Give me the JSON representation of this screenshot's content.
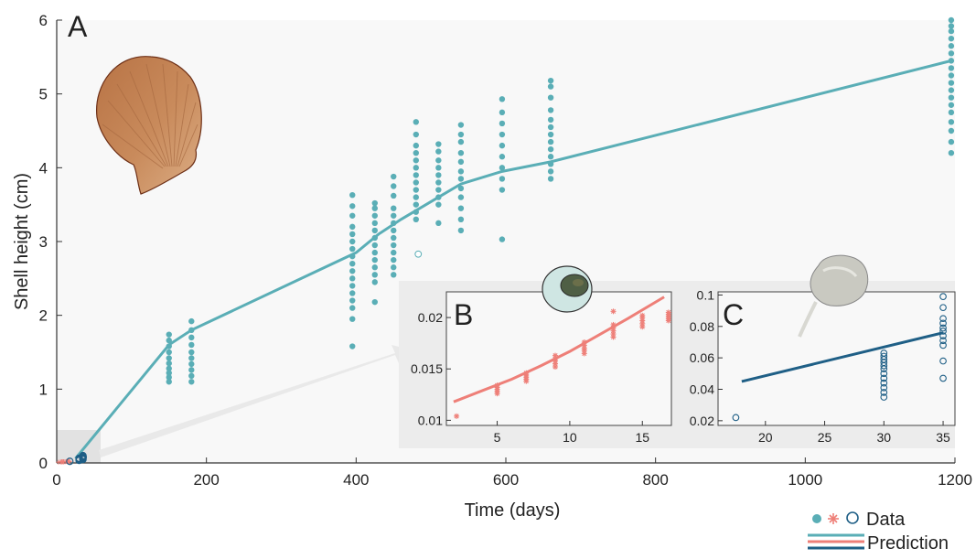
{
  "colors": {
    "growth_teal": "#5aaeb6",
    "larva_red": "#ee7f78",
    "juvenile_blue": "#1f5f86",
    "inset_bg": "#efefef",
    "plot_bg": "#f8f8f8"
  },
  "icons": [
    "scallop-shell-icon",
    "larva-icon",
    "juvenile-scallop-icon"
  ],
  "legend": {
    "data_label": "Data",
    "prediction_label": "Prediction"
  },
  "chart_data": [
    {
      "panel": "A",
      "type": "scatter",
      "xlabel": "Time (days)",
      "ylabel": "Shell height (cm)",
      "xlim": [
        0,
        1200
      ],
      "ylim": [
        0,
        6
      ],
      "xticks": [
        "0",
        "200",
        "400",
        "600",
        "800",
        "1000",
        "1200"
      ],
      "yticks": [
        "0",
        "1",
        "2",
        "3",
        "4",
        "5",
        "6"
      ],
      "grid": false,
      "prediction": {
        "x": [
          25,
          150,
          180,
          400,
          430,
          460,
          485,
          510,
          540,
          595,
          660,
          1195
        ],
        "y": [
          0.06,
          1.6,
          1.8,
          2.85,
          3.1,
          3.3,
          3.45,
          3.6,
          3.78,
          3.95,
          4.08,
          5.45
        ]
      },
      "groups": [
        {
          "x": 150,
          "y": [
            1.1,
            1.16,
            1.22,
            1.28,
            1.35,
            1.42,
            1.5,
            1.58,
            1.66,
            1.74
          ]
        },
        {
          "x": 180,
          "y": [
            1.1,
            1.18,
            1.26,
            1.34,
            1.42,
            1.5,
            1.6,
            1.7,
            1.8,
            1.92
          ]
        },
        {
          "x": 395,
          "y": [
            1.58,
            1.95,
            2.1,
            2.2,
            2.3,
            2.4,
            2.5,
            2.6,
            2.7,
            2.8,
            2.9,
            3.0,
            3.1,
            3.2,
            3.35,
            3.48,
            3.63
          ]
        },
        {
          "x": 425,
          "y": [
            2.18,
            2.45,
            2.55,
            2.65,
            2.75,
            2.85,
            2.95,
            3.05,
            3.15,
            3.25,
            3.35,
            3.45,
            3.52
          ]
        },
        {
          "x": 450,
          "y": [
            2.55,
            2.65,
            2.75,
            2.85,
            2.95,
            3.05,
            3.15,
            3.25,
            3.35,
            3.45,
            3.62,
            3.75,
            3.88
          ]
        },
        {
          "x": 480,
          "y": [
            3.3,
            3.4,
            3.5,
            3.6,
            3.7,
            3.8,
            3.9,
            4.0,
            4.1,
            4.2,
            4.3,
            4.45,
            4.62
          ]
        },
        {
          "x": 510,
          "y": [
            3.25,
            3.5,
            3.6,
            3.7,
            3.8,
            3.9,
            4.0,
            4.1,
            4.22,
            4.32
          ]
        },
        {
          "x": 540,
          "y": [
            3.15,
            3.3,
            3.45,
            3.6,
            3.72,
            3.85,
            3.95,
            4.08,
            4.2,
            4.35,
            4.45,
            4.58
          ]
        },
        {
          "x": 595,
          "y": [
            3.03,
            3.7,
            3.85,
            4.0,
            4.15,
            4.3,
            4.45,
            4.6,
            4.75,
            4.93
          ]
        },
        {
          "x": 660,
          "y": [
            3.85,
            3.95,
            4.05,
            4.15,
            4.25,
            4.35,
            4.45,
            4.55,
            4.65,
            4.78,
            4.95,
            5.1,
            5.18
          ]
        },
        {
          "x": 1195,
          "y": [
            4.2,
            4.35,
            4.5,
            4.62,
            4.75,
            4.85,
            4.95,
            5.05,
            5.15,
            5.25,
            5.35,
            5.45,
            5.55,
            5.65,
            5.75,
            5.85,
            5.92,
            6.0
          ]
        }
      ],
      "outliers_open": [
        {
          "x": 483,
          "y": 2.83
        }
      ]
    },
    {
      "panel": "B",
      "type": "scatter",
      "xlim": [
        1.5,
        17
      ],
      "ylim": [
        0.0095,
        0.0225
      ],
      "xticks": [
        "5",
        "10",
        "15"
      ],
      "yticks": [
        "0.01",
        "0.015",
        "0.02"
      ],
      "prediction": {
        "x": [
          2,
          4,
          6,
          8,
          10,
          12,
          14,
          16.5
        ],
        "y": [
          0.0118,
          0.0129,
          0.014,
          0.0153,
          0.0167,
          0.0183,
          0.0199,
          0.022
        ]
      },
      "groups": [
        {
          "x": 2.2,
          "y": [
            0.0104
          ]
        },
        {
          "x": 5,
          "y": [
            0.0126,
            0.0128,
            0.013,
            0.0132,
            0.0134
          ]
        },
        {
          "x": 7,
          "y": [
            0.0138,
            0.014,
            0.0142,
            0.0144,
            0.0146
          ]
        },
        {
          "x": 9,
          "y": [
            0.0152,
            0.0155,
            0.0158,
            0.016,
            0.0163
          ]
        },
        {
          "x": 11,
          "y": [
            0.0165,
            0.0168,
            0.017,
            0.0173,
            0.0176
          ]
        },
        {
          "x": 13,
          "y": [
            0.0181,
            0.0184,
            0.0187,
            0.019,
            0.0193,
            0.0206
          ]
        },
        {
          "x": 15,
          "y": [
            0.0191,
            0.0194,
            0.0197,
            0.02,
            0.0202
          ]
        },
        {
          "x": 16.8,
          "y": [
            0.0197,
            0.0199,
            0.0201,
            0.0203,
            0.0205
          ]
        }
      ]
    },
    {
      "panel": "C",
      "type": "scatter",
      "xlim": [
        16,
        36
      ],
      "ylim": [
        0.017,
        0.102
      ],
      "xticks": [
        "20",
        "25",
        "30",
        "35"
      ],
      "yticks": [
        "0.02",
        "0.04",
        "0.06",
        "0.08",
        "0.1"
      ],
      "prediction": {
        "x": [
          18,
          35
        ],
        "y": [
          0.045,
          0.076
        ]
      },
      "groups": [
        {
          "x": 17.5,
          "y": [
            0.022
          ]
        },
        {
          "x": 30,
          "y": [
            0.035,
            0.038,
            0.041,
            0.044,
            0.047,
            0.05,
            0.053,
            0.055,
            0.057,
            0.059,
            0.061,
            0.063
          ]
        },
        {
          "x": 35,
          "y": [
            0.047,
            0.058,
            0.068,
            0.071,
            0.074,
            0.077,
            0.079,
            0.082,
            0.085,
            0.092,
            0.099
          ]
        }
      ]
    }
  ]
}
